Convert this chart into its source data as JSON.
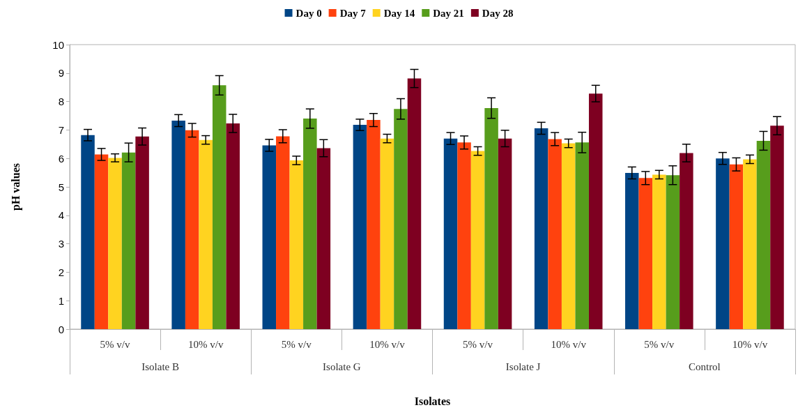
{
  "chart_data": {
    "type": "bar",
    "xlabel": "Isolates",
    "ylabel": "pH values",
    "categories": [
      "5% v/v",
      "10% v/v",
      "5% v/v",
      "10% v/v",
      "5% v/v",
      "10% v/v",
      "5% v/v",
      "10% v/v"
    ],
    "annotations": [
      "Isolate B",
      "Isolate G",
      "Isolate J",
      "Control"
    ],
    "series": [
      {
        "name": "Day 0",
        "color": "#004586",
        "values": [
          6.82,
          7.33,
          6.46,
          7.18,
          6.7,
          7.06,
          5.49,
          6.0
        ],
        "errors": [
          0.2,
          0.21,
          0.21,
          0.2,
          0.21,
          0.21,
          0.21,
          0.21
        ]
      },
      {
        "name": "Day 7",
        "color": "#ff420e",
        "values": [
          6.14,
          6.99,
          6.78,
          7.35,
          6.56,
          6.68,
          5.31,
          5.79
        ],
        "errors": [
          0.21,
          0.24,
          0.23,
          0.23,
          0.23,
          0.23,
          0.23,
          0.23
        ]
      },
      {
        "name": "Day 14",
        "color": "#ffd320",
        "values": [
          6.02,
          6.65,
          5.93,
          6.7,
          6.26,
          6.53,
          5.43,
          5.97
        ],
        "errors": [
          0.14,
          0.15,
          0.15,
          0.15,
          0.15,
          0.15,
          0.15,
          0.15
        ]
      },
      {
        "name": "Day 21",
        "color": "#579d1c",
        "values": [
          6.21,
          8.57,
          7.4,
          7.74,
          7.77,
          6.56,
          5.41,
          6.62
        ],
        "errors": [
          0.33,
          0.34,
          0.34,
          0.36,
          0.36,
          0.36,
          0.33,
          0.33
        ]
      },
      {
        "name": "Day 28",
        "color": "#7e0021",
        "values": [
          6.77,
          7.23,
          6.36,
          8.81,
          6.7,
          8.28,
          6.19,
          7.15
        ],
        "errors": [
          0.3,
          0.32,
          0.3,
          0.32,
          0.29,
          0.29,
          0.31,
          0.32
        ]
      }
    ],
    "ylim": [
      0,
      10
    ],
    "yticks": [
      0,
      1,
      2,
      3,
      4,
      5,
      6,
      7,
      8,
      9,
      10
    ],
    "grid": false,
    "legend": "top"
  }
}
